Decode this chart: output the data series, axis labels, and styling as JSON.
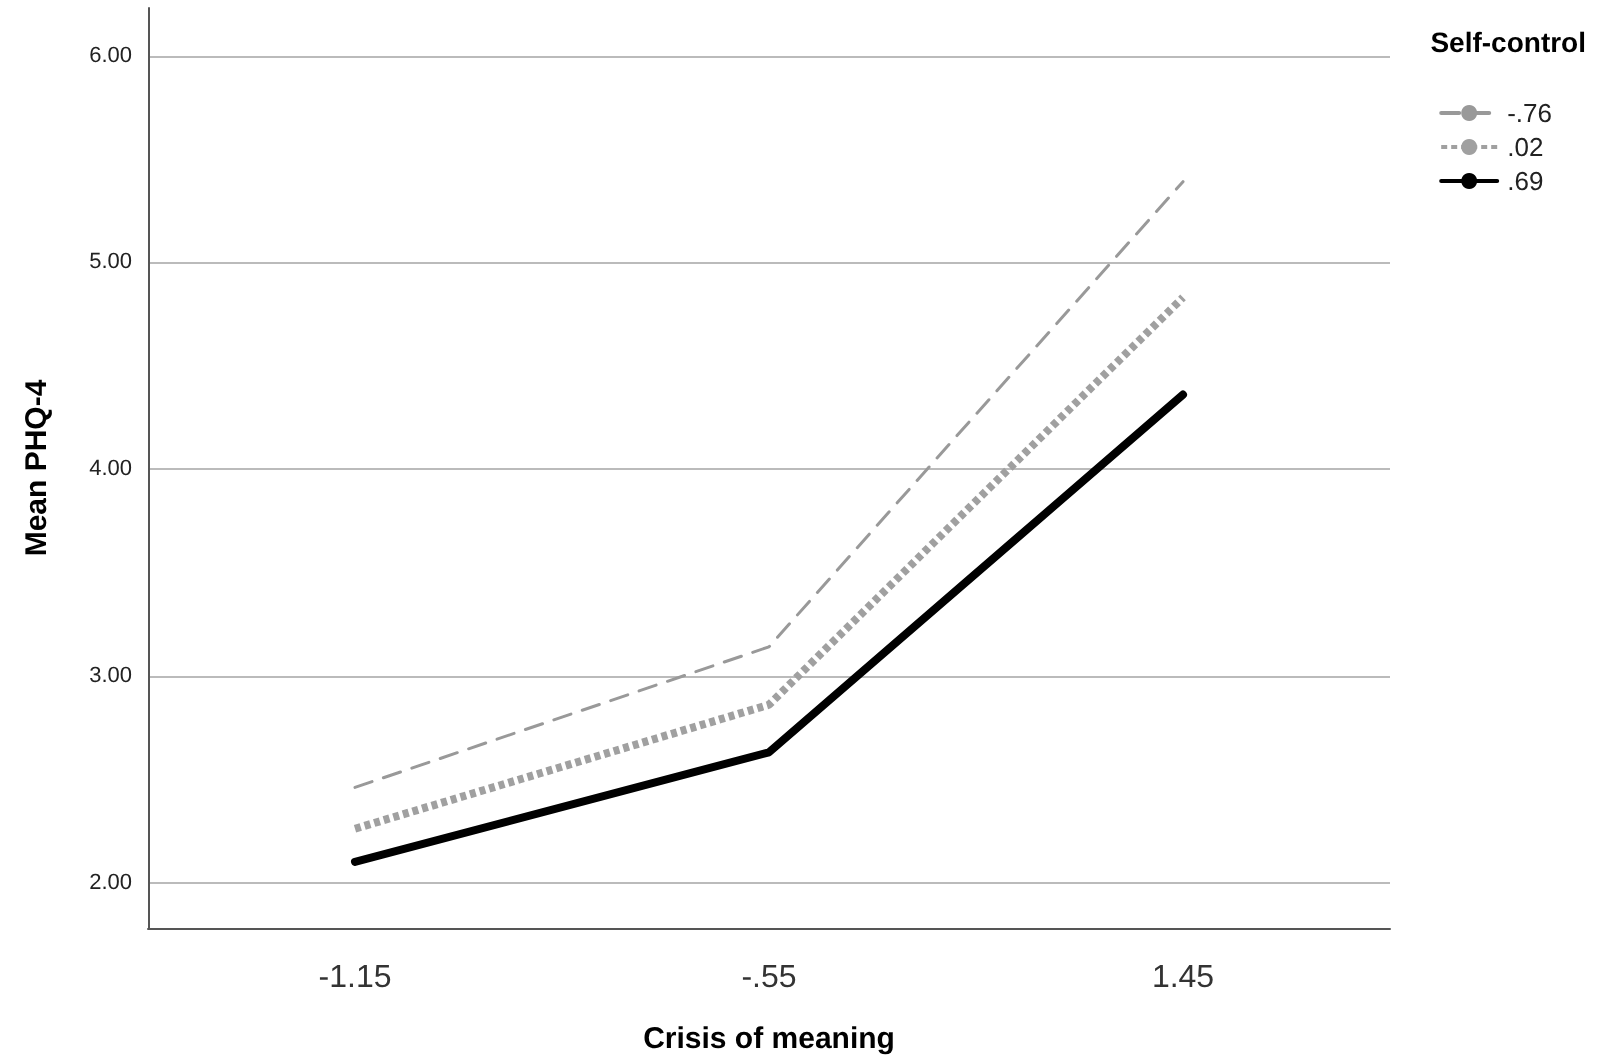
{
  "chart_data": {
    "type": "line",
    "xlabel": "Crisis of meaning",
    "ylabel": "Mean PHQ-4",
    "legend_title": "Self-control",
    "categories": [
      "-1.15",
      "-.55",
      "1.45"
    ],
    "series": [
      {
        "name": "-.76",
        "color": "#999999",
        "line_style": "dashed",
        "values": [
          2.46,
          3.14,
          5.39
        ]
      },
      {
        "name": ".02",
        "color": "#a0a0a0",
        "line_style": "dotted",
        "values": [
          2.26,
          2.86,
          4.83
        ]
      },
      {
        "name": ".69",
        "color": "#000000",
        "line_style": "solid",
        "values": [
          2.1,
          2.63,
          4.36
        ]
      }
    ],
    "ylim": [
      1.78,
      6.23
    ],
    "yticks": [
      {
        "value": 2,
        "label": "2.00"
      },
      {
        "value": 3,
        "label": "3.00"
      },
      {
        "value": 4,
        "label": "4.00"
      },
      {
        "value": 5,
        "label": "5.00"
      },
      {
        "value": 6,
        "label": "6.00"
      }
    ],
    "grid": "y",
    "legend": "top right",
    "marker": "none"
  }
}
